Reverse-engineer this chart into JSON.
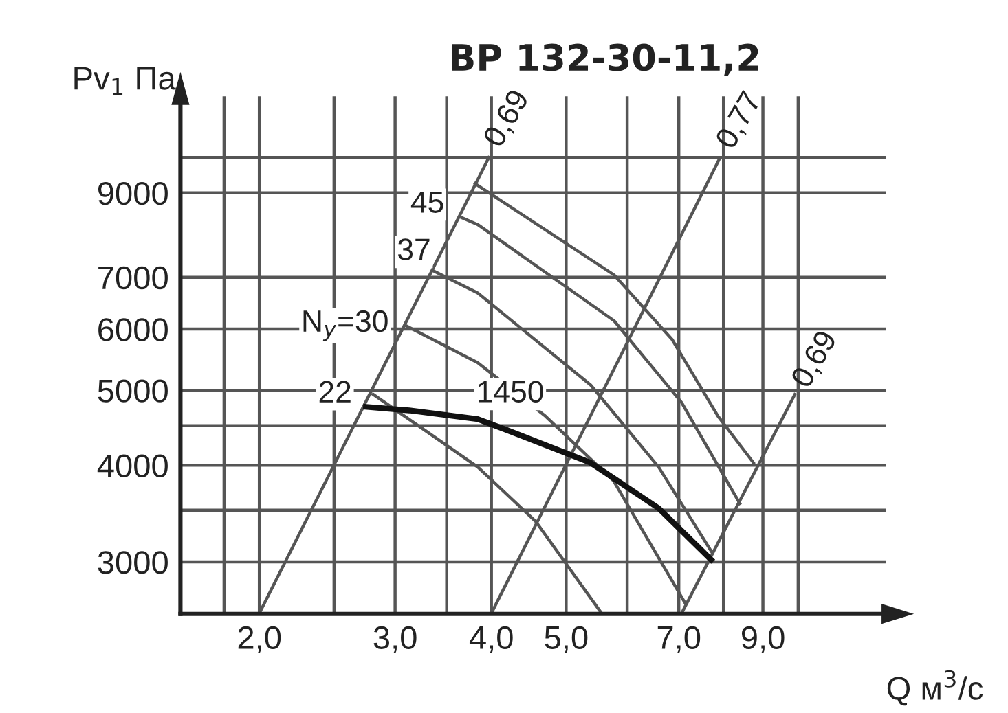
{
  "chart_data": {
    "type": "line",
    "title": "ВР 132-30-11,2",
    "xlabel": "Q м$^{3}$/с",
    "ylabel": "Pv$_{1}$ Па",
    "log": "xy",
    "grid": true,
    "marker": "none",
    "line_style": "solid",
    "xlim": [
      1.58,
      13
    ],
    "ylim": [
      2570,
      12000
    ],
    "xticks": [
      {
        "value": 1.8,
        "label": null
      },
      {
        "value": 2,
        "label": "2,0"
      },
      {
        "value": 2.5,
        "label": null
      },
      {
        "value": 3,
        "label": "3,0"
      },
      {
        "value": 3.5,
        "label": null
      },
      {
        "value": 4,
        "label": "4,0"
      },
      {
        "value": 5,
        "label": "5,0"
      },
      {
        "value": 6,
        "label": null
      },
      {
        "value": 7,
        "label": "7,0"
      },
      {
        "value": 8,
        "label": null
      },
      {
        "value": 9,
        "label": "9,0"
      },
      {
        "value": 10,
        "label": null
      }
    ],
    "yticks": [
      3000,
      {
        "value": 3500,
        "label": null
      },
      4000,
      {
        "value": 4500,
        "label": null
      },
      5000,
      6000,
      7000,
      9000,
      {
        "value": 10000,
        "label": null
      }
    ],
    "series": [
      {
        "color": "#111111",
        "x": [
          2.75,
          3.13,
          3.84,
          4.17,
          5.38,
          6.59,
          7.71
        ],
        "values": [
          4760,
          4710,
          4590,
          4450,
          4030,
          3520,
          3020
        ]
      },
      {
        "color": "#555555",
        "x": [
          3.81,
          5.77,
          6.86,
          7.87,
          8.75
        ],
        "values": [
          9250,
          7050,
          5820,
          4630,
          4030
        ]
      },
      {
        "color": "#555555",
        "x": [
          3.66,
          3.84,
          5.77,
          7.06,
          8.4
        ],
        "values": [
          8360,
          8190,
          6150,
          4820,
          3570
        ]
      },
      {
        "color": "#555555",
        "x": [
          3.37,
          3.84,
          5.38,
          6.59,
          7.74
        ],
        "values": [
          7130,
          6680,
          5080,
          3980,
          3080
        ]
      },
      {
        "color": "#555555",
        "x": [
          3.1,
          3.84,
          4.7,
          5.76,
          7.14
        ],
        "values": [
          6060,
          5430,
          4630,
          3820,
          2650
        ]
      },
      {
        "color": "#555555",
        "x": [
          2.81,
          3.84,
          4.57,
          5.55
        ],
        "values": [
          4940,
          3980,
          3380,
          2580
        ]
      },
      {
        "color": "#555555",
        "x": [
          2.0,
          3.97
        ],
        "values": [
          2575,
          10000
        ]
      },
      {
        "color": "#555555",
        "x": [
          4.0,
          7.9
        ],
        "values": [
          2575,
          9950
        ]
      },
      {
        "color": "#555555",
        "x": [
          7.06,
          9.9
        ],
        "values": [
          2575,
          4940
        ]
      }
    ],
    "annotations": [
      {
        "text": "45",
        "x": 3.81,
        "y": 9250
      },
      {
        "text": "37",
        "x": 3.66,
        "y": 8360
      },
      {
        "text": "N$_{y}$=30",
        "x": 3.1,
        "y": 6060
      },
      {
        "text": "22",
        "x": 2.81,
        "y": 4940
      },
      {
        "text": "1450",
        "x": 3.84,
        "y": 4590
      },
      {
        "text": "0,69",
        "x": 3.97,
        "y": 10000
      },
      {
        "text": "0,77",
        "x": 7.9,
        "y": 9950
      },
      {
        "text": "0,69",
        "x": 9.9,
        "y": 4940
      }
    ]
  }
}
